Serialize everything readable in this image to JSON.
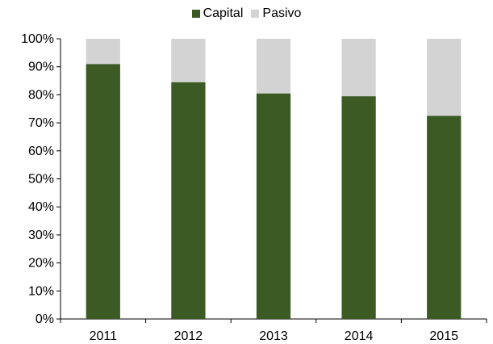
{
  "chart_data": {
    "type": "bar",
    "stacked": true,
    "normalized_percent": true,
    "categories": [
      "2011",
      "2012",
      "2013",
      "2014",
      "2015"
    ],
    "series": [
      {
        "name": "Capital",
        "values": [
          91,
          84.5,
          80.5,
          79.5,
          72.5
        ],
        "color": "#3b5a24"
      },
      {
        "name": "Pasivo",
        "values": [
          9,
          15.5,
          19.5,
          20.5,
          27.5
        ],
        "color": "#d3d3d3"
      }
    ],
    "ylim": [
      0,
      100
    ],
    "y_ticks": [
      "0%",
      "10%",
      "20%",
      "30%",
      "40%",
      "50%",
      "60%",
      "70%",
      "80%",
      "90%",
      "100%"
    ],
    "grid": false,
    "legend_position": "top-center",
    "title": "",
    "xlabel": "",
    "ylabel": ""
  }
}
